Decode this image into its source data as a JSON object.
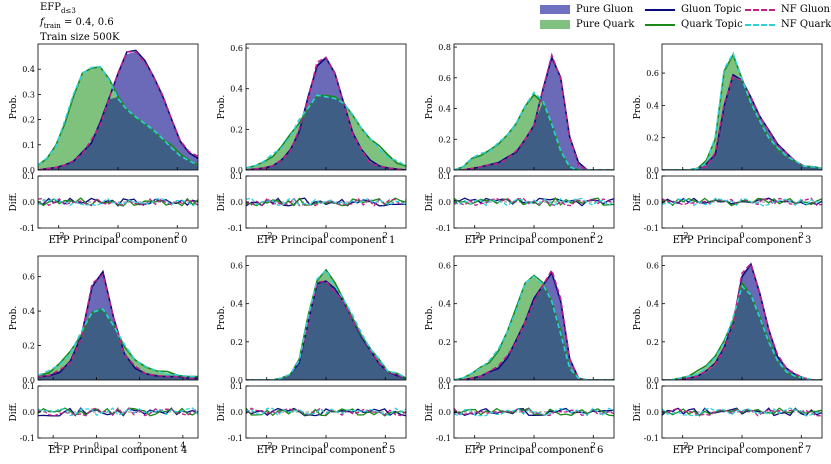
{
  "info": {
    "line1": "EFP",
    "line1_sub": "d≤3",
    "line2_prefix": "f",
    "line2_sub": "train",
    "line2_value": " = 0.4, 0.6",
    "line3": "Train size 500K"
  },
  "legend": [
    {
      "label": "Pure Gluon",
      "kind": "patch",
      "color": "#7070c0"
    },
    {
      "label": "Pure Quark",
      "kind": "patch",
      "color": "#80c080"
    },
    {
      "label": "Gluon Topic",
      "kind": "line",
      "color": "#0a0a80",
      "style": "solid"
    },
    {
      "label": "Quark Topic",
      "kind": "line",
      "color": "#1a8a1a",
      "style": "solid"
    },
    {
      "label": "NF Gluon",
      "kind": "line",
      "color": "#c0208a",
      "style": "dashed"
    },
    {
      "label": "NF Quark",
      "kind": "line",
      "color": "#30d0d8",
      "style": "dashed"
    }
  ],
  "colors": {
    "gluon_fill": "#6a6ab8",
    "quark_fill": "#7ec27e",
    "overlap_fill": "#3f5e85",
    "gluon_topic": "#0a0a80",
    "quark_topic": "#1a8a1a",
    "nf_gluon": "#c0208a",
    "nf_quark": "#30d0d8"
  },
  "chart_data": [
    {
      "type": "area",
      "xlabel": "EFP Principal component 0",
      "ylabel": "Prob.",
      "diff_ylabel": "Diff.",
      "xlim": [
        -2.7,
        2.7
      ],
      "ylim": [
        0,
        0.5
      ],
      "yticks": [
        0,
        0.1,
        0.2,
        0.3,
        0.4
      ],
      "xticks": [
        -2,
        0,
        2
      ],
      "diff_ylim": [
        -0.1,
        0.1
      ],
      "diff_yticks": [
        -0.1,
        0.0,
        0.1
      ],
      "x": [
        -2.7,
        -2.4,
        -2.1,
        -1.8,
        -1.5,
        -1.2,
        -0.9,
        -0.6,
        -0.3,
        0,
        0.3,
        0.6,
        0.9,
        1.2,
        1.5,
        1.8,
        2.1,
        2.4,
        2.7
      ],
      "gluon": [
        0.0,
        0.005,
        0.01,
        0.02,
        0.04,
        0.07,
        0.11,
        0.18,
        0.28,
        0.39,
        0.46,
        0.47,
        0.43,
        0.37,
        0.29,
        0.2,
        0.12,
        0.07,
        0.05
      ],
      "quark": [
        0.02,
        0.05,
        0.1,
        0.19,
        0.3,
        0.38,
        0.41,
        0.41,
        0.36,
        0.29,
        0.24,
        0.21,
        0.18,
        0.15,
        0.12,
        0.09,
        0.06,
        0.04,
        0.02
      ]
    },
    {
      "type": "area",
      "xlabel": "EFP Principal component 1",
      "ylabel": "Prob.",
      "diff_ylabel": "Diff.",
      "xlim": [
        -2.7,
        2.7
      ],
      "ylim": [
        0,
        0.62
      ],
      "yticks": [
        0,
        0.2,
        0.4,
        0.6
      ],
      "xticks": [
        -2,
        0,
        2
      ],
      "diff_ylim": [
        -0.1,
        0.1
      ],
      "diff_yticks": [
        -0.1,
        0.0,
        0.1
      ],
      "x": [
        -2.7,
        -2.4,
        -2.1,
        -1.8,
        -1.5,
        -1.2,
        -0.9,
        -0.6,
        -0.3,
        0,
        0.3,
        0.6,
        0.9,
        1.2,
        1.5,
        1.8,
        2.1,
        2.4,
        2.7
      ],
      "gluon": [
        0.0,
        0.005,
        0.01,
        0.02,
        0.05,
        0.1,
        0.2,
        0.36,
        0.52,
        0.56,
        0.48,
        0.33,
        0.18,
        0.09,
        0.04,
        0.02,
        0.01,
        0.005,
        0.0
      ],
      "quark": [
        0.01,
        0.02,
        0.04,
        0.07,
        0.11,
        0.17,
        0.24,
        0.31,
        0.36,
        0.37,
        0.36,
        0.32,
        0.27,
        0.21,
        0.15,
        0.11,
        0.07,
        0.04,
        0.02
      ]
    },
    {
      "type": "area",
      "xlabel": "EFP Principal component 2",
      "ylabel": "Prob.",
      "diff_ylabel": "Diff.",
      "xlim": [
        -2.7,
        2.7
      ],
      "ylim": [
        0,
        0.82
      ],
      "yticks": [
        0,
        0.2,
        0.4,
        0.6,
        0.8
      ],
      "xticks": [
        -2,
        0,
        2
      ],
      "diff_ylim": [
        -0.1,
        0.1
      ],
      "diff_yticks": [
        -0.1,
        0.0,
        0.1
      ],
      "x": [
        -2.7,
        -2.4,
        -2.1,
        -1.8,
        -1.5,
        -1.2,
        -0.9,
        -0.6,
        -0.3,
        0,
        0.3,
        0.6,
        0.9,
        1.2,
        1.5,
        1.8,
        2.1,
        2.4,
        2.7
      ],
      "gluon": [
        0.0,
        0.0,
        0.01,
        0.02,
        0.03,
        0.05,
        0.08,
        0.12,
        0.2,
        0.3,
        0.52,
        0.74,
        0.6,
        0.22,
        0.04,
        0.0,
        0.0,
        0.0,
        0.0
      ],
      "quark": [
        0.0,
        0.02,
        0.07,
        0.1,
        0.13,
        0.17,
        0.23,
        0.31,
        0.42,
        0.5,
        0.44,
        0.3,
        0.12,
        0.02,
        0.0,
        0.0,
        0.0,
        0.0,
        0.0
      ]
    },
    {
      "type": "area",
      "xlabel": "EFP Principal component 3",
      "ylabel": "Prob.",
      "diff_ylabel": "Diff.",
      "xlim": [
        -2.7,
        2.7
      ],
      "ylim": [
        0,
        0.78
      ],
      "yticks": [
        0,
        0.2,
        0.4,
        0.6
      ],
      "xticks": [
        -2,
        0,
        2
      ],
      "diff_ylim": [
        -0.1,
        0.1
      ],
      "diff_yticks": [
        -0.1,
        0.0,
        0.1
      ],
      "x": [
        -2.7,
        -2.4,
        -2.1,
        -1.8,
        -1.5,
        -1.2,
        -0.9,
        -0.6,
        -0.3,
        0,
        0.3,
        0.6,
        0.9,
        1.2,
        1.5,
        1.8,
        2.1,
        2.4,
        2.7
      ],
      "gluon": [
        0.0,
        0.0,
        0.0,
        0.0,
        0.01,
        0.03,
        0.1,
        0.4,
        0.58,
        0.55,
        0.46,
        0.34,
        0.24,
        0.16,
        0.1,
        0.06,
        0.03,
        0.02,
        0.01
      ],
      "quark": [
        0.0,
        0.0,
        0.0,
        0.0,
        0.01,
        0.05,
        0.2,
        0.62,
        0.72,
        0.56,
        0.42,
        0.3,
        0.2,
        0.13,
        0.08,
        0.05,
        0.03,
        0.02,
        0.01
      ]
    },
    {
      "type": "area",
      "xlabel": "EFP Principal component 4",
      "ylabel": "Prob.",
      "diff_ylabel": "Diff.",
      "xlim": [
        -2.7,
        4.7
      ],
      "ylim": [
        0,
        0.72
      ],
      "yticks": [
        0,
        0.2,
        0.4,
        0.6
      ],
      "xticks": [
        -2,
        0,
        2,
        4
      ],
      "diff_ylim": [
        -0.1,
        0.1
      ],
      "diff_yticks": [
        -0.1,
        0.0,
        0.1
      ],
      "x": [
        -2.7,
        -2.2,
        -1.7,
        -1.2,
        -0.7,
        -0.2,
        0.3,
        0.8,
        1.3,
        1.8,
        2.3,
        2.8,
        3.3,
        3.8,
        4.3,
        4.7
      ],
      "gluon": [
        0.02,
        0.03,
        0.05,
        0.1,
        0.25,
        0.55,
        0.62,
        0.36,
        0.15,
        0.07,
        0.04,
        0.03,
        0.02,
        0.02,
        0.01,
        0.01
      ],
      "quark": [
        0.03,
        0.05,
        0.09,
        0.16,
        0.27,
        0.4,
        0.42,
        0.32,
        0.2,
        0.12,
        0.07,
        0.05,
        0.04,
        0.03,
        0.02,
        0.02
      ]
    },
    {
      "type": "area",
      "xlabel": "EFP Principal component 5",
      "ylabel": "Prob.",
      "diff_ylabel": "Diff.",
      "xlim": [
        -2.7,
        2.7
      ],
      "ylim": [
        0,
        0.65
      ],
      "yticks": [
        0,
        0.2,
        0.4,
        0.6
      ],
      "xticks": [
        -2,
        0,
        2
      ],
      "diff_ylim": [
        -0.1,
        0.1
      ],
      "diff_yticks": [
        -0.1,
        0.0,
        0.1
      ],
      "x": [
        -2.7,
        -2.4,
        -2.1,
        -1.8,
        -1.5,
        -1.2,
        -0.9,
        -0.6,
        -0.3,
        0,
        0.3,
        0.6,
        0.9,
        1.2,
        1.5,
        1.8,
        2.1,
        2.4,
        2.7
      ],
      "gluon": [
        0.0,
        0.0,
        0.0,
        0.0,
        0.01,
        0.03,
        0.1,
        0.3,
        0.51,
        0.52,
        0.47,
        0.4,
        0.32,
        0.23,
        0.15,
        0.09,
        0.05,
        0.03,
        0.01
      ],
      "quark": [
        0.0,
        0.0,
        0.0,
        0.0,
        0.01,
        0.03,
        0.1,
        0.34,
        0.52,
        0.58,
        0.5,
        0.42,
        0.33,
        0.24,
        0.16,
        0.1,
        0.05,
        0.03,
        0.01
      ]
    },
    {
      "type": "area",
      "xlabel": "EFP Principal component 6",
      "ylabel": "Prob.",
      "diff_ylabel": "Diff.",
      "xlim": [
        -2.7,
        2.7
      ],
      "ylim": [
        0,
        0.65
      ],
      "yticks": [
        0,
        0.2,
        0.4,
        0.6
      ],
      "xticks": [
        -2,
        0,
        2
      ],
      "diff_ylim": [
        -0.1,
        0.1
      ],
      "diff_yticks": [
        -0.1,
        0.0,
        0.1
      ],
      "x": [
        -2.7,
        -2.4,
        -2.1,
        -1.8,
        -1.5,
        -1.2,
        -0.9,
        -0.6,
        -0.3,
        0,
        0.3,
        0.6,
        0.9,
        1.2,
        1.5,
        1.8,
        2.1,
        2.4,
        2.7
      ],
      "gluon": [
        0.0,
        0.0,
        0.01,
        0.02,
        0.04,
        0.07,
        0.12,
        0.2,
        0.3,
        0.42,
        0.5,
        0.57,
        0.42,
        0.12,
        0.01,
        0.0,
        0.0,
        0.0,
        0.0
      ],
      "quark": [
        0.0,
        0.01,
        0.03,
        0.06,
        0.1,
        0.16,
        0.25,
        0.37,
        0.5,
        0.54,
        0.5,
        0.42,
        0.25,
        0.06,
        0.01,
        0.0,
        0.0,
        0.0,
        0.0
      ]
    },
    {
      "type": "area",
      "xlabel": "EFP Principal component 7",
      "ylabel": "Prob.",
      "diff_ylabel": "Diff.",
      "xlim": [
        -2.7,
        2.7
      ],
      "ylim": [
        0,
        0.65
      ],
      "yticks": [
        0,
        0.2,
        0.4,
        0.6
      ],
      "xticks": [
        -2,
        0,
        2
      ],
      "diff_ylim": [
        -0.1,
        0.1
      ],
      "diff_yticks": [
        -0.1,
        0.0,
        0.1
      ],
      "x": [
        -2.7,
        -2.4,
        -2.1,
        -1.8,
        -1.5,
        -1.2,
        -0.9,
        -0.6,
        -0.3,
        0,
        0.3,
        0.6,
        0.9,
        1.2,
        1.5,
        1.8,
        2.1,
        2.4,
        2.7
      ],
      "gluon": [
        0.0,
        0.0,
        0.0,
        0.01,
        0.02,
        0.04,
        0.08,
        0.16,
        0.3,
        0.55,
        0.6,
        0.45,
        0.26,
        0.13,
        0.06,
        0.03,
        0.01,
        0.0,
        0.0
      ],
      "quark": [
        0.0,
        0.0,
        0.01,
        0.02,
        0.04,
        0.07,
        0.12,
        0.2,
        0.32,
        0.5,
        0.45,
        0.33,
        0.2,
        0.1,
        0.05,
        0.02,
        0.01,
        0.0,
        0.0
      ]
    }
  ]
}
